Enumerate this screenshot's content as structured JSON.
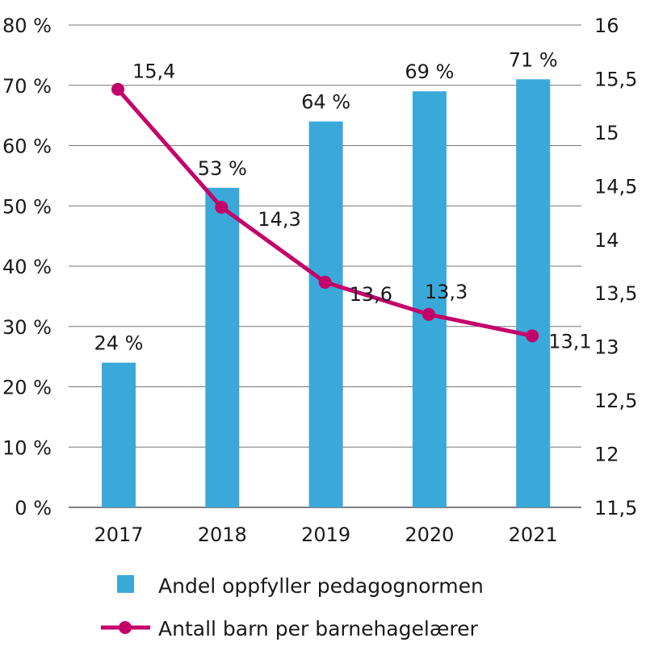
{
  "chart_data": {
    "type": "bar+line",
    "categories": [
      "2017",
      "2018",
      "2019",
      "2020",
      "2021"
    ],
    "series": [
      {
        "name": "Andel oppfyller pedagognormen",
        "type": "bar",
        "axis": "left",
        "values": [
          24,
          53,
          64,
          69,
          71
        ],
        "labels": [
          "24 %",
          "53 %",
          "64 %",
          "69 %",
          "71 %"
        ],
        "color": "#3aa9d9"
      },
      {
        "name": "Antall barn per barnehagelærer",
        "type": "line",
        "axis": "right",
        "values": [
          15.4,
          14.3,
          13.6,
          13.3,
          13.1
        ],
        "labels": [
          "15,4",
          "14,3",
          "13,6",
          "13,3",
          "13,1"
        ],
        "color": "#c4006a"
      }
    ],
    "left_axis": {
      "ylim": [
        0,
        80
      ],
      "ticks": [
        "0 %",
        "10 %",
        "20 %",
        "30 %",
        "40 %",
        "50 %",
        "60 %",
        "70 %",
        "80 %"
      ]
    },
    "right_axis": {
      "ylim": [
        11.5,
        16
      ],
      "ticks": [
        "11,5",
        "12",
        "12,5",
        "13",
        "13,5",
        "14",
        "14,5",
        "15",
        "15,5",
        "16"
      ]
    },
    "grid": true,
    "legend": "bottom"
  }
}
